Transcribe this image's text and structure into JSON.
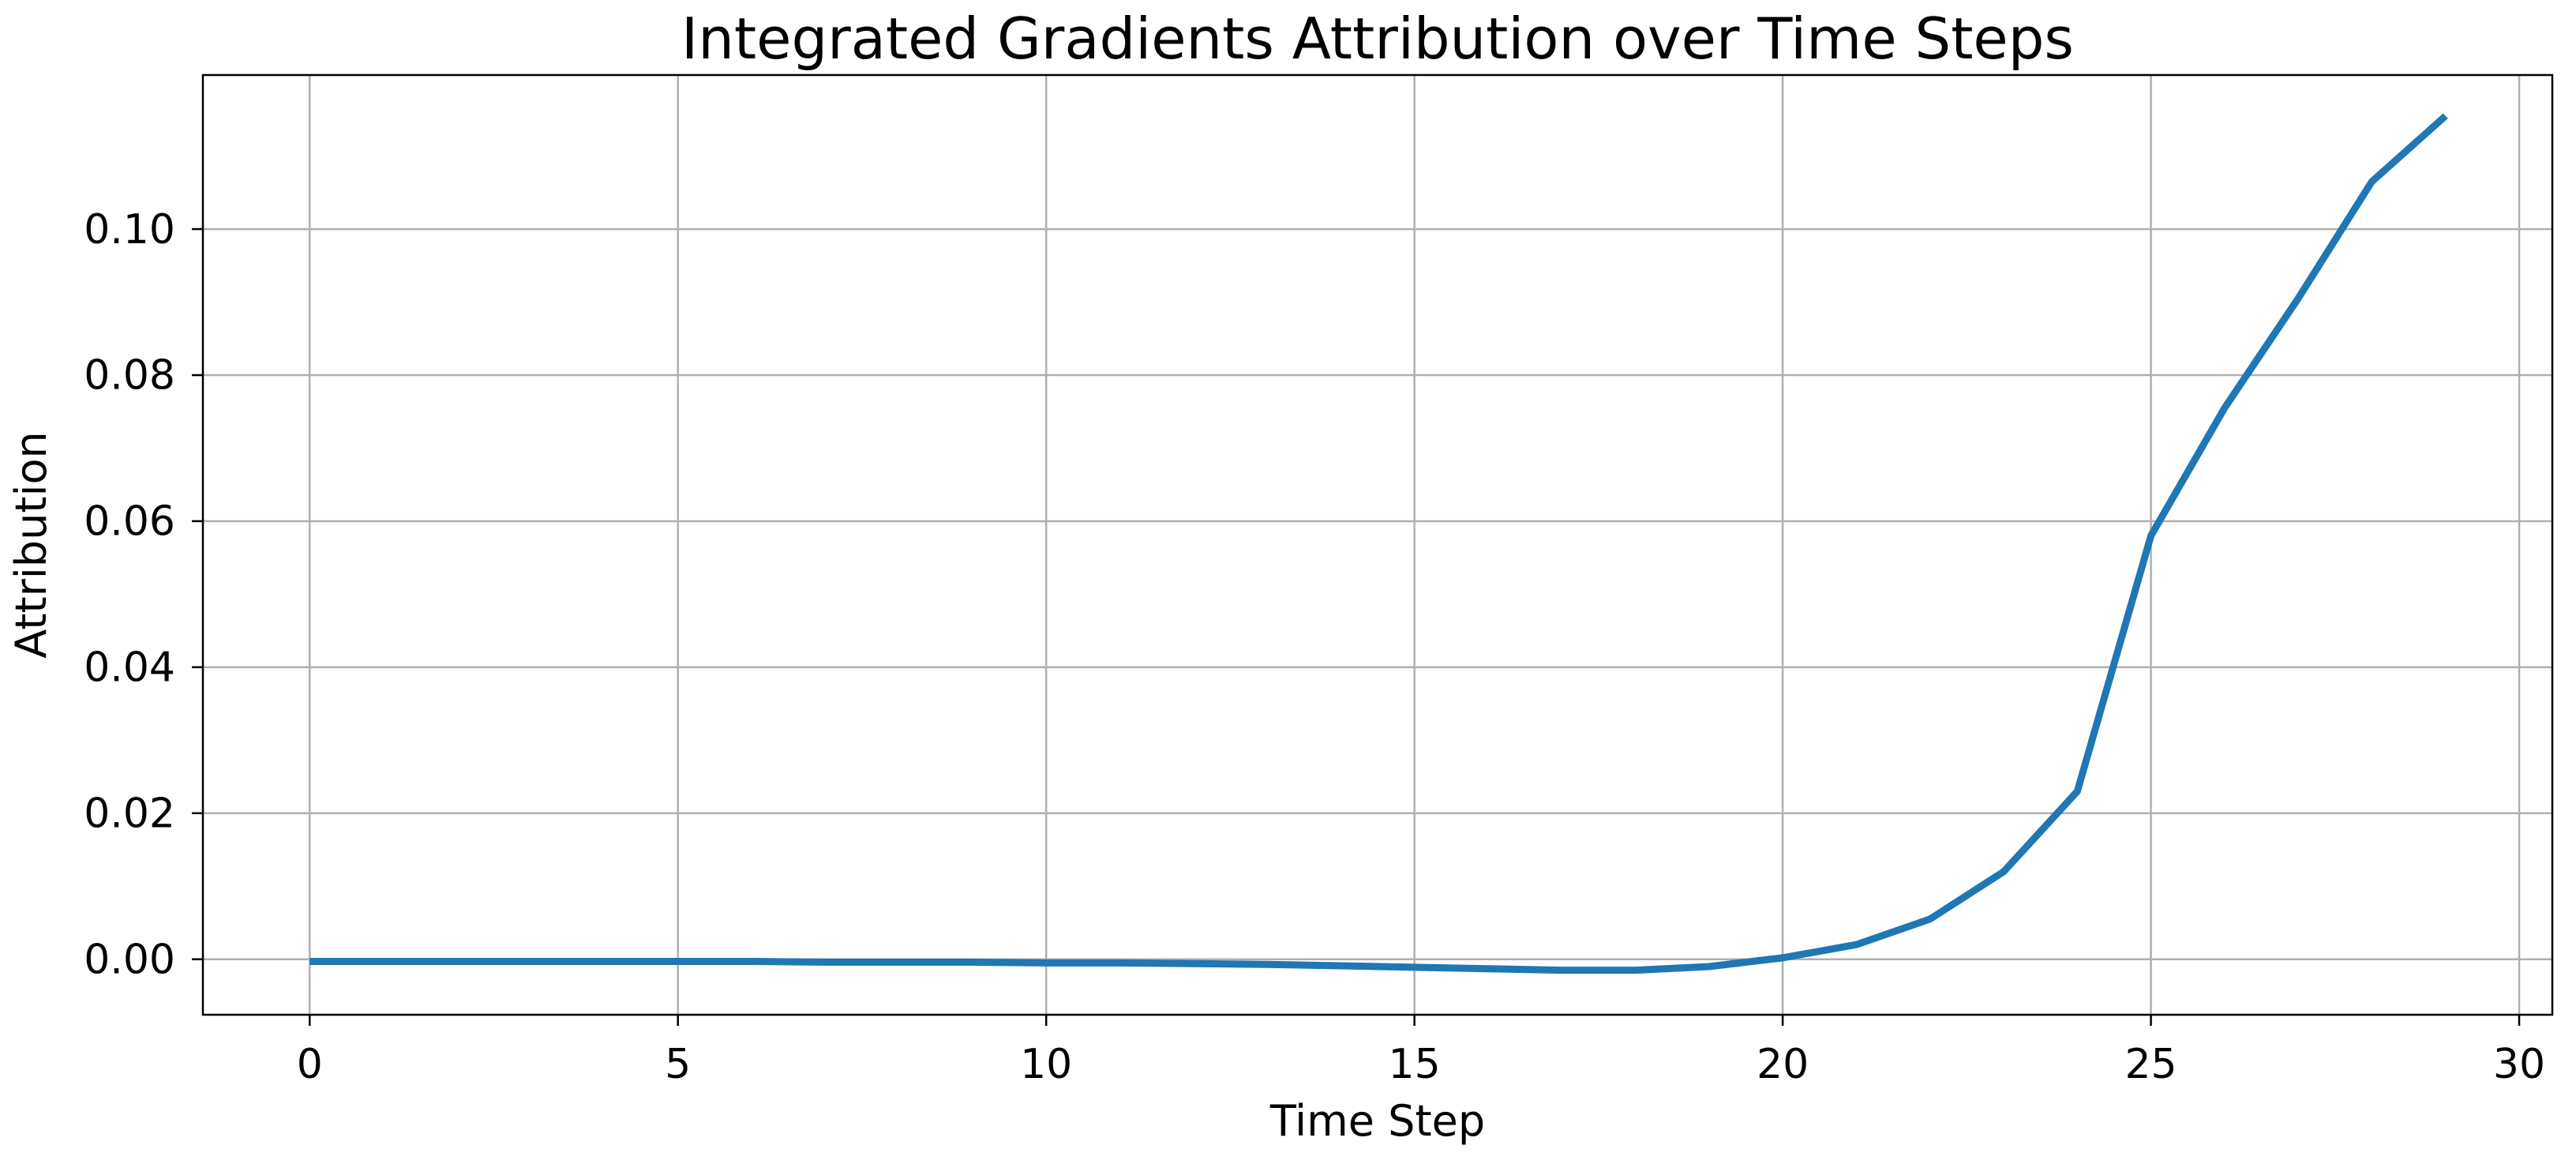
{
  "chart_data": {
    "type": "line",
    "title": "Integrated Gradients Attribution over Time Steps",
    "xlabel": "Time Step",
    "ylabel": "Attribution",
    "x": [
      0,
      1,
      2,
      3,
      4,
      5,
      6,
      7,
      8,
      9,
      10,
      11,
      12,
      13,
      14,
      15,
      16,
      17,
      18,
      19,
      20,
      21,
      22,
      23,
      24,
      25,
      26,
      27,
      28,
      29
    ],
    "y": [
      -0.0003,
      -0.0003,
      -0.0003,
      -0.0003,
      -0.0003,
      -0.0003,
      -0.0003,
      -0.0004,
      -0.0004,
      -0.0004,
      -0.0005,
      -0.0005,
      -0.0006,
      -0.0007,
      -0.0009,
      -0.0011,
      -0.0013,
      -0.0015,
      -0.0015,
      -0.001,
      0.0002,
      0.002,
      0.0055,
      0.012,
      0.023,
      0.058,
      0.0755,
      0.0905,
      0.1065,
      0.1155
    ],
    "xlim": [
      -1.45,
      30.45
    ],
    "ylim": [
      -0.0076,
      0.1211
    ],
    "xticks": [
      0,
      5,
      10,
      15,
      20,
      25,
      30
    ],
    "xtick_labels": [
      "0",
      "5",
      "10",
      "15",
      "20",
      "25",
      "30"
    ],
    "yticks": [
      0.0,
      0.02,
      0.04,
      0.06,
      0.08,
      0.1
    ],
    "ytick_labels": [
      "0.00",
      "0.02",
      "0.04",
      "0.06",
      "0.08",
      "0.10"
    ],
    "grid": true,
    "legend": "none",
    "line_color": "#1f77b4",
    "grid_color": "#b0b0b0",
    "spine_color": "#000000",
    "text_color": "#000000",
    "background_color": "#ffffff"
  }
}
